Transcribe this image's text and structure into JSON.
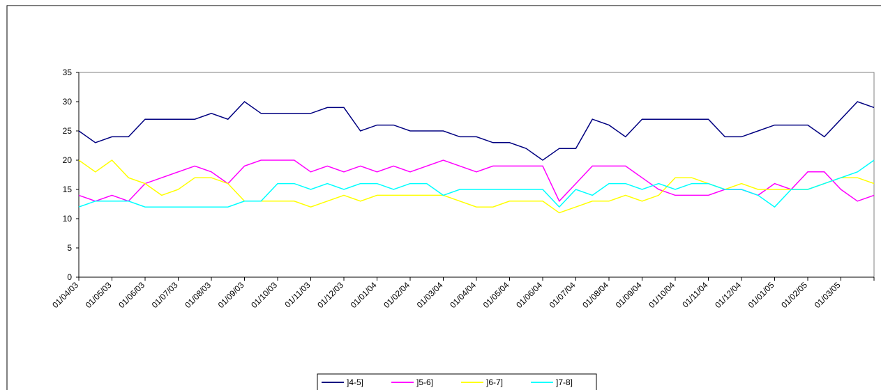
{
  "chart_data": {
    "type": "line",
    "categories": [
      "01/04/03",
      null,
      "01/05/03",
      null,
      "01/06/03",
      null,
      "01/07/03",
      null,
      "01/08/03",
      null,
      "01/09/03",
      null,
      "01/10/03",
      null,
      "01/11/03",
      null,
      "01/12/03",
      null,
      "01/01/04",
      null,
      "01/02/04",
      null,
      "01/03/04",
      null,
      "01/04/04",
      null,
      "01/05/04",
      null,
      "01/06/04",
      null,
      "01/07/04",
      null,
      "01/08/04",
      null,
      "01/09/04",
      null,
      "01/10/04",
      null,
      "01/11/04",
      null,
      "01/12/04",
      null,
      "01/01/05",
      null,
      "01/02/05",
      null,
      "01/03/05",
      null,
      null
    ],
    "series": [
      {
        "name": "]4-5]",
        "color": "#000080",
        "values": [
          25,
          23,
          24,
          24,
          27,
          27,
          27,
          27,
          28,
          27,
          30,
          28,
          28,
          28,
          28,
          29,
          29,
          25,
          26,
          26,
          25,
          25,
          25,
          24,
          24,
          23,
          23,
          22,
          20,
          22,
          22,
          27,
          26,
          24,
          27,
          27,
          27,
          27,
          27,
          24,
          24,
          25,
          26,
          26,
          26,
          24,
          27,
          30,
          29
        ]
      },
      {
        "name": "]5-6]",
        "color": "#ff00ff",
        "values": [
          14,
          13,
          14,
          13,
          16,
          17,
          18,
          19,
          18,
          16,
          19,
          20,
          20,
          20,
          18,
          19,
          18,
          19,
          18,
          19,
          18,
          19,
          20,
          19,
          18,
          19,
          19,
          19,
          19,
          13,
          16,
          19,
          19,
          19,
          17,
          15,
          14,
          14,
          14,
          15,
          15,
          14,
          16,
          15,
          18,
          18,
          15,
          13,
          14
        ]
      },
      {
        "name": "]6-7]",
        "color": "#ffff00",
        "values": [
          20,
          18,
          20,
          17,
          16,
          14,
          15,
          17,
          17,
          16,
          13,
          13,
          13,
          13,
          12,
          13,
          14,
          13,
          14,
          14,
          14,
          14,
          14,
          13,
          12,
          12,
          13,
          13,
          13,
          11,
          12,
          13,
          13,
          14,
          13,
          14,
          17,
          17,
          16,
          15,
          16,
          15,
          15,
          15,
          15,
          16,
          17,
          17,
          16
        ]
      },
      {
        "name": "]7-8]",
        "color": "#00ffff",
        "values": [
          12,
          13,
          13,
          13,
          12,
          12,
          12,
          12,
          12,
          12,
          13,
          13,
          16,
          16,
          15,
          16,
          15,
          16,
          16,
          15,
          16,
          16,
          14,
          15,
          15,
          15,
          15,
          15,
          15,
          12,
          15,
          14,
          16,
          16,
          15,
          16,
          15,
          16,
          16,
          15,
          15,
          14,
          12,
          15,
          15,
          16,
          17,
          18,
          20
        ]
      }
    ],
    "ylim": [
      0,
      35
    ],
    "yticks": [
      0,
      5,
      10,
      15,
      20,
      25,
      30,
      35
    ],
    "grid": false,
    "legend": "bottom"
  }
}
